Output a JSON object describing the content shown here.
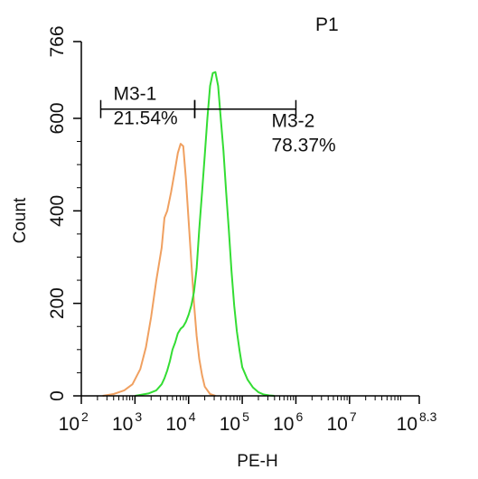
{
  "chart_data": {
    "type": "line",
    "title": "P1",
    "title_color": "#33cc33",
    "xlabel": "PE-H",
    "ylabel": "Count",
    "x_scale": "log",
    "xlim": [
      100,
      199526231.5
    ],
    "ylim": [
      0,
      766
    ],
    "x_ticks": [
      {
        "base": "10",
        "exp": "2",
        "value": 100
      },
      {
        "base": "10",
        "exp": "3",
        "value": 1000
      },
      {
        "base": "10",
        "exp": "4",
        "value": 10000
      },
      {
        "base": "10",
        "exp": "5",
        "value": 100000
      },
      {
        "base": "10",
        "exp": "6",
        "value": 1000000
      },
      {
        "base": "10",
        "exp": "7",
        "value": 10000000
      },
      {
        "base": "10",
        "exp": "8.3",
        "value": 199526231.5
      }
    ],
    "y_ticks": [
      {
        "label": "0",
        "value": 0
      },
      {
        "label": "200",
        "value": 200
      },
      {
        "label": "400",
        "value": 400
      },
      {
        "label": "600",
        "value": 600
      },
      {
        "label": "766",
        "value": 766
      }
    ],
    "grid": false,
    "series": [
      {
        "color": "#f0a060",
        "points": [
          [
            250,
            0
          ],
          [
            400,
            4
          ],
          [
            630,
            12
          ],
          [
            900,
            25
          ],
          [
            1260,
            58
          ],
          [
            1600,
            105
          ],
          [
            2000,
            170
          ],
          [
            2500,
            250
          ],
          [
            3150,
            320
          ],
          [
            3550,
            385
          ],
          [
            4000,
            400
          ],
          [
            4700,
            440
          ],
          [
            5600,
            490
          ],
          [
            6300,
            525
          ],
          [
            7100,
            545
          ],
          [
            7950,
            540
          ],
          [
            8900,
            470
          ],
          [
            10000,
            380
          ],
          [
            11200,
            290
          ],
          [
            12600,
            200
          ],
          [
            14100,
            130
          ],
          [
            15800,
            80
          ],
          [
            17800,
            45
          ],
          [
            20000,
            20
          ],
          [
            25100,
            4
          ],
          [
            31600,
            0
          ]
        ]
      },
      {
        "color": "#33dd33",
        "points": [
          [
            1000,
            0
          ],
          [
            1780,
            5
          ],
          [
            2500,
            12
          ],
          [
            3150,
            25
          ],
          [
            3550,
            38
          ],
          [
            4000,
            55
          ],
          [
            4470,
            75
          ],
          [
            5000,
            100
          ],
          [
            5600,
            115
          ],
          [
            6300,
            135
          ],
          [
            7100,
            145
          ],
          [
            7950,
            150
          ],
          [
            8900,
            160
          ],
          [
            10000,
            175
          ],
          [
            11200,
            195
          ],
          [
            12600,
            225
          ],
          [
            14100,
            275
          ],
          [
            15800,
            360
          ],
          [
            17800,
            440
          ],
          [
            20000,
            520
          ],
          [
            22400,
            600
          ],
          [
            25100,
            670
          ],
          [
            28200,
            698
          ],
          [
            31600,
            700
          ],
          [
            35500,
            670
          ],
          [
            39800,
            600
          ],
          [
            44700,
            530
          ],
          [
            50100,
            440
          ],
          [
            56200,
            360
          ],
          [
            63100,
            270
          ],
          [
            70800,
            195
          ],
          [
            79400,
            140
          ],
          [
            89100,
            98
          ],
          [
            100000,
            62
          ],
          [
            125900,
            35
          ],
          [
            158500,
            18
          ],
          [
            199500,
            8
          ],
          [
            251200,
            3
          ],
          [
            316200,
            1
          ],
          [
            398100,
            0
          ]
        ]
      }
    ],
    "gates": [
      {
        "name": "M3-1",
        "percent": "21.54%",
        "x_start": 230,
        "x_end": 13000,
        "y": 620
      },
      {
        "name": "M3-2",
        "percent": "78.37%",
        "x_start": 13000,
        "x_end": 1000000,
        "y": 620
      }
    ]
  }
}
